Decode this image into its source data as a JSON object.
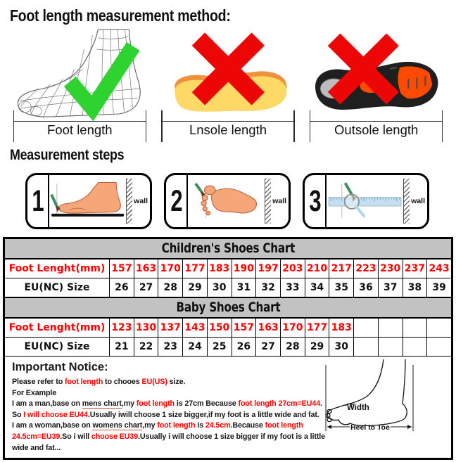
{
  "title": "Foot length measurement method:",
  "methods": {
    "foot": {
      "label": "Foot length",
      "icon": "foot-wireframe-icon",
      "mark": "check"
    },
    "insole": {
      "label": "Lnsole length",
      "icon": "insole-icon",
      "mark": "cross"
    },
    "outsole": {
      "label": "Outsole length",
      "icon": "outsole-icon",
      "mark": "cross"
    }
  },
  "steps": {
    "heading": "Measurement steps",
    "items": [
      {
        "number": "1",
        "wall_label": "wall",
        "scene": "foot-side-with-pencil"
      },
      {
        "number": "2",
        "wall_label": "wall",
        "scene": "footprint-with-pencil"
      },
      {
        "number": "3",
        "wall_label": "wall",
        "scene": "ruler-with-pencil-magnifier"
      }
    ]
  },
  "size_charts": {
    "children": {
      "title": "Children's Shoes Chart",
      "row_foot_label": "Foot Lenght(mm)",
      "row_size_label": "EU(NC) Size",
      "foot_lengths": [
        "157",
        "163",
        "170",
        "177",
        "183",
        "190",
        "197",
        "203",
        "210",
        "217",
        "223",
        "230",
        "237",
        "243"
      ],
      "eu_sizes": [
        "26",
        "27",
        "28",
        "29",
        "30",
        "31",
        "32",
        "33",
        "34",
        "35",
        "36",
        "37",
        "38",
        "39"
      ]
    },
    "baby": {
      "title": "Baby Shoes Chart",
      "row_foot_label": "Foot Lenght(mm)",
      "row_size_label": "EU(NC) Size",
      "foot_lengths": [
        "123",
        "130",
        "137",
        "143",
        "150",
        "157",
        "163",
        "170",
        "177",
        "183",
        "",
        "",
        "",
        ""
      ],
      "eu_sizes": [
        "21",
        "22",
        "23",
        "24",
        "25",
        "26",
        "27",
        "28",
        "29",
        "30",
        "",
        "",
        "",
        ""
      ]
    }
  },
  "notice": {
    "heading": "Important Notice:",
    "lines": [
      [
        {
          "t": "Please refer to "
        },
        {
          "t": "foot length",
          "r": true
        },
        {
          "t": " to chooes "
        },
        {
          "t": "EU(US)",
          "r": true
        },
        {
          "t": " size."
        }
      ],
      [
        {
          "t": "For Example"
        }
      ],
      [
        {
          "t": "I am a man,base on "
        },
        {
          "t": "mens chart",
          "u": true
        },
        {
          "t": ",my "
        },
        {
          "t": "foot length",
          "r": true
        },
        {
          "t": " is 27cm Because "
        },
        {
          "t": "foot length 27cm=EU44",
          "r": true
        },
        {
          "t": "."
        }
      ],
      [
        {
          "t": "So "
        },
        {
          "t": "I will choose EU44",
          "r": true
        },
        {
          "t": ".Usually iwill choose 1 size bigger,if my foot is a little wide and fat."
        }
      ],
      [
        {
          "t": "I am a woman,base on "
        },
        {
          "t": "womens chart",
          "u": true
        },
        {
          "t": ",my "
        },
        {
          "t": "foot length",
          "r": true
        },
        {
          "t": " is "
        },
        {
          "t": "24.5cm",
          "r": true
        },
        {
          "t": ".Because "
        },
        {
          "t": "foot length",
          "r": true
        }
      ],
      [
        {
          "t": "24.5cm=EU39",
          "r": true
        },
        {
          "t": ".So i will "
        },
        {
          "t": "choose EU39",
          "r": true
        },
        {
          "t": ".Usually i will choose 1 size bigger if my foot is a little"
        }
      ],
      [
        {
          "t": "wide and fat..."
        }
      ]
    ],
    "diagram": {
      "width_label": "Width",
      "heel_toe_label": "Heel to Toe"
    }
  },
  "colors": {
    "check_green": "#2fd32f",
    "cross_red": "#ed0606",
    "table_value_red": "#fe0000",
    "table_header_gray": "#c2c2c2",
    "insole_yellow": "#ffd966",
    "insole_edge_orange": "#f0923d",
    "outsole_orange": "#ff4a00",
    "skin": "#f5a77a",
    "pencil_green": "#3e8e62",
    "ruler_blue": "#c5dff0"
  }
}
